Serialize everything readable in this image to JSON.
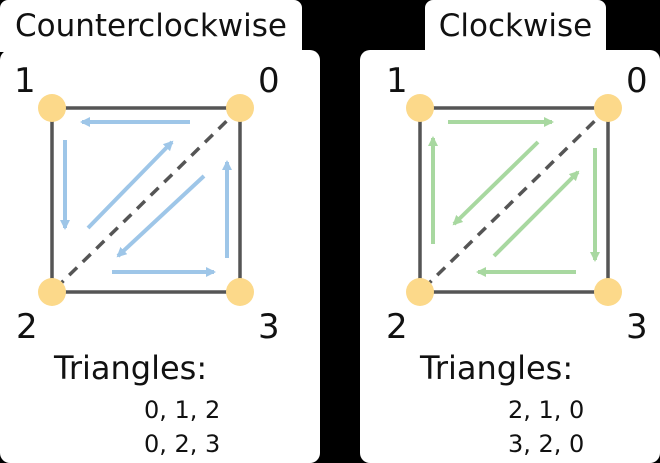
{
  "panels": [
    {
      "title": "Counterclockwise",
      "corners": [
        "1",
        "0",
        "2",
        "3"
      ],
      "triangles_title": "Triangles:",
      "triangles": [
        "0, 1, 2",
        "0, 2, 3"
      ],
      "arrow_color": "#9ec6e8"
    },
    {
      "title": "Clockwise",
      "corners": [
        "1",
        "0",
        "2",
        "3"
      ],
      "triangles_title": "Triangles:",
      "triangles": [
        "2, 1, 0",
        "3, 2, 0"
      ],
      "arrow_color": "#a8d8a0"
    }
  ],
  "colors": {
    "vertex": "#fcd98a",
    "square_edge": "#555555",
    "diagonal": "#555555",
    "background": "#000000",
    "panel": "#ffffff"
  }
}
